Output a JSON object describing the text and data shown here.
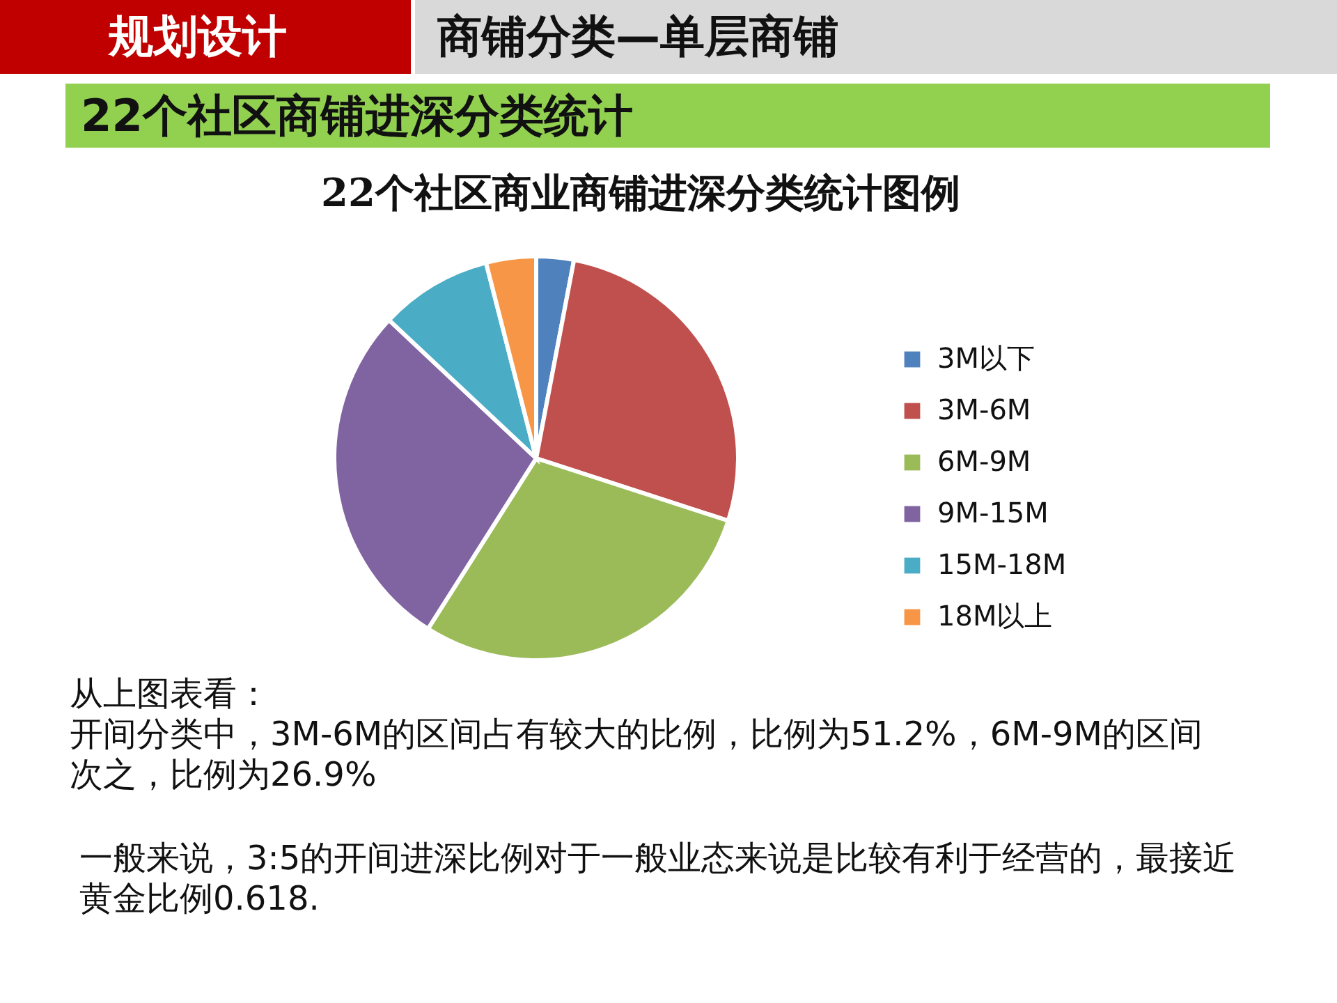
{
  "chart_data": {
    "type": "pie",
    "title": "22个社区商业商铺进深分类统计图例",
    "subtitle": "22个社区商铺进深分类统计",
    "categories": [
      "3M以下",
      "3M-6M",
      "6M-9M",
      "9M-15M",
      "15M-18M",
      "18M以上"
    ],
    "values": [
      3,
      27,
      29,
      28,
      9,
      4
    ],
    "colors": [
      "#4f81bd",
      "#c0504d",
      "#9bbb59",
      "#8064a2",
      "#4bacc6",
      "#f79646"
    ],
    "legend": "right",
    "annotations": [
      "规划设计",
      "商铺分类—单层商铺",
      "从上图表看：",
      "开间分类中，3M-6M的区间占有较大的比例，比例为51.2%，6M-9M的区间次之，比例为26.9%",
      "一般来说，3:5的开间进深比例对于一般业态来说是比较有利于经营的，最接近黄金比例0.618."
    ]
  }
}
